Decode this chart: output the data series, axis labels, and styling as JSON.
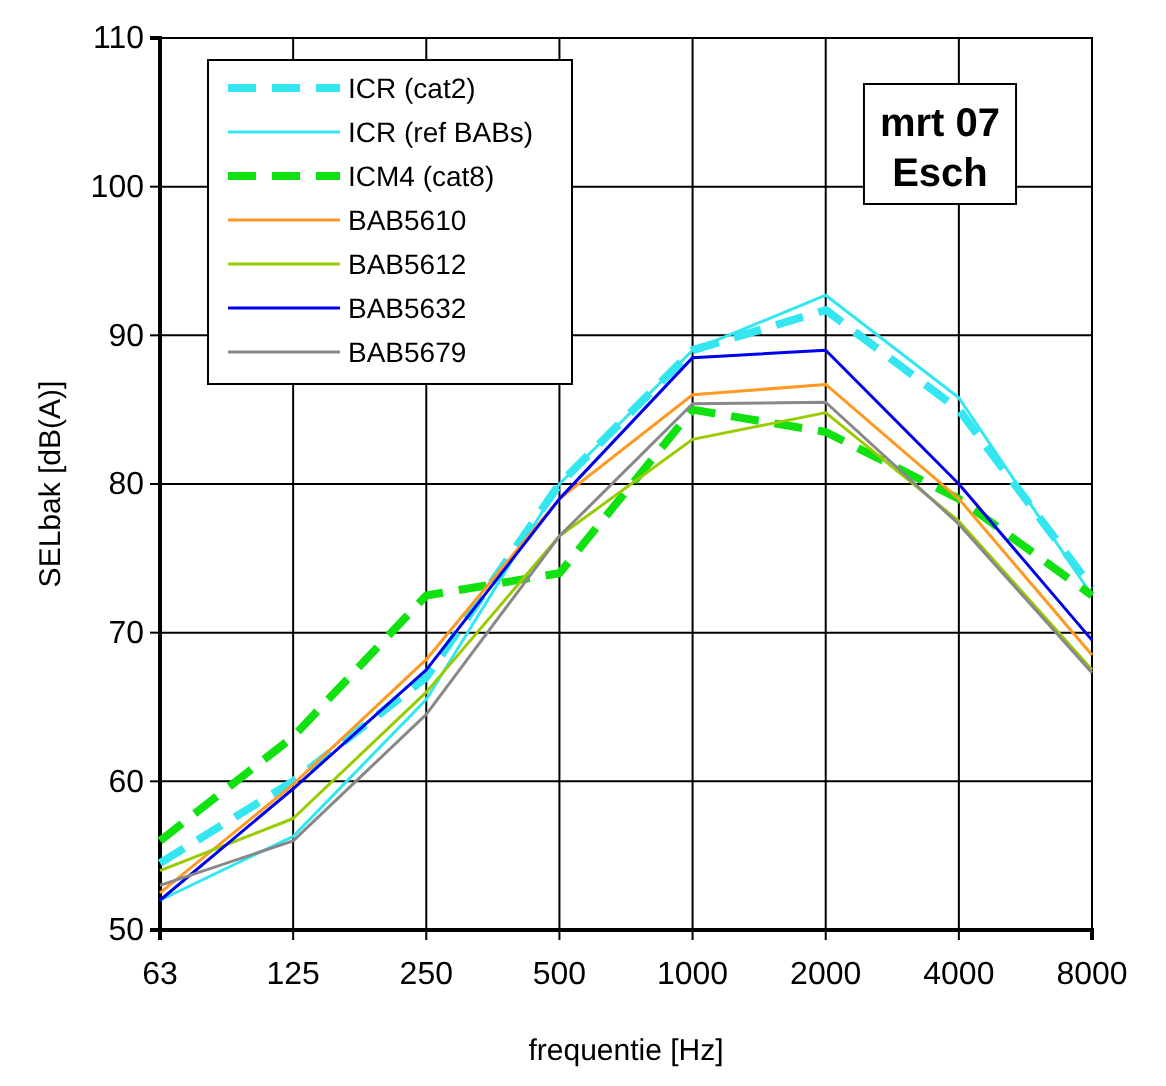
{
  "chart_data": {
    "type": "line",
    "xlabel": "frequentie [Hz]",
    "ylabel": "SELbak [dB(A)]",
    "categories": [
      "63",
      "125",
      "250",
      "500",
      "1000",
      "2000",
      "4000",
      "8000"
    ],
    "ylim": [
      50,
      110
    ],
    "yticks": [
      50,
      60,
      70,
      80,
      90,
      100,
      110
    ],
    "grid": true,
    "legend": "top left",
    "marker": "none",
    "annotations": [
      "mrt 07",
      "Esch"
    ],
    "series": [
      {
        "name": "ICR (cat2)",
        "color": "#33e6f0",
        "line_style": "dashed",
        "values": [
          54.5,
          60,
          67,
          80,
          89,
          91.7,
          85,
          73
        ]
      },
      {
        "name": "ICR (ref BABs)",
        "color": "#33e6f0",
        "line_style": "solid",
        "values": [
          52,
          56.3,
          65.5,
          80,
          89,
          92.7,
          85.8,
          72.5
        ]
      },
      {
        "name": "ICM4 (cat8)",
        "color": "#11e011",
        "line_style": "dashed",
        "values": [
          56,
          63,
          72.5,
          74,
          85,
          83.5,
          79,
          72.5
        ]
      },
      {
        "name": "BAB5610",
        "color": "#ff9922",
        "line_style": "solid",
        "values": [
          52.5,
          59.8,
          68.2,
          79,
          86,
          86.7,
          79,
          68.5
        ]
      },
      {
        "name": "BAB5612",
        "color": "#99cc00",
        "line_style": "solid",
        "values": [
          54,
          57.5,
          66,
          76.5,
          83,
          84.8,
          77.5,
          67.5
        ]
      },
      {
        "name": "BAB5632",
        "color": "#0000ee",
        "line_style": "solid",
        "values": [
          52,
          59.5,
          67.5,
          79,
          88.5,
          89,
          80,
          69.5
        ]
      },
      {
        "name": "BAB5679",
        "color": "#888888",
        "line_style": "solid",
        "values": [
          53,
          56,
          64.5,
          76.5,
          85.4,
          85.5,
          77.3,
          67.3
        ]
      }
    ]
  }
}
